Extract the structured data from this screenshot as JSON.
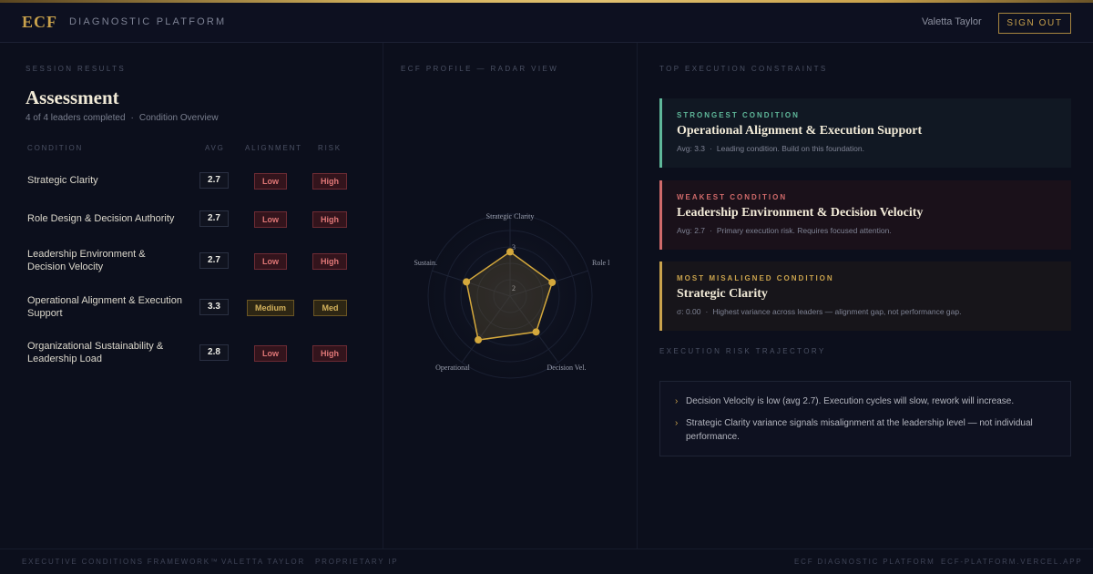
{
  "header": {
    "brand": "ECF",
    "platform": "DIAGNOSTIC PLATFORM",
    "user": "Valetta Taylor",
    "sign_out": "SIGN OUT"
  },
  "left": {
    "eyebrow": "SESSION RESULTS",
    "title": "Assessment",
    "completed": "4 of 4 leaders completed",
    "overview": "Condition Overview",
    "columns": {
      "condition": "CONDITION",
      "avg": "AVG",
      "alignment": "ALIGNMENT",
      "risk": "RISK"
    },
    "rows": [
      {
        "name": "Strategic Clarity",
        "avg": "2.7",
        "alignment": "Low",
        "risk": "High"
      },
      {
        "name": "Role Design & Decision Authority",
        "avg": "2.7",
        "alignment": "Low",
        "risk": "High"
      },
      {
        "name": "Leadership Environment & Decision Velocity",
        "avg": "2.7",
        "alignment": "Low",
        "risk": "High"
      },
      {
        "name": "Operational Alignment & Execution Support",
        "avg": "3.3",
        "alignment": "Medium",
        "risk": "Med"
      },
      {
        "name": "Organizational Sustainability & Leadership Load",
        "avg": "2.8",
        "alignment": "Low",
        "risk": "High"
      }
    ]
  },
  "radar": {
    "eyebrow": "ECF PROFILE — RADAR VIEW",
    "axes": [
      "Strategic Clarity",
      "Role l",
      "Decision Vel.",
      "Operational",
      "Sustain."
    ],
    "values": [
      2.7,
      2.7,
      2.7,
      3.3,
      2.8
    ],
    "max": 5,
    "ring_labels": [
      "3",
      "2"
    ],
    "accent": "#d4a83c"
  },
  "right": {
    "eyebrow": "TOP EXECUTION CONSTRAINTS",
    "cards": [
      {
        "kind": "STRONGEST CONDITION",
        "title": "Operational Alignment & Execution Support",
        "avg": "Avg: 3.3",
        "note": "Leading condition. Build on this foundation.",
        "color": "#5fb89a"
      },
      {
        "kind": "WEAKEST CONDITION",
        "title": "Leadership Environment & Decision Velocity",
        "avg": "Avg: 2.7",
        "note": "Primary execution risk. Requires focused attention.",
        "color": "#d06a6a"
      },
      {
        "kind": "MOST MISALIGNED CONDITION",
        "title": "Strategic Clarity",
        "avg": "σ: 0.00",
        "note": "Highest variance across leaders — alignment gap, not performance gap.",
        "color": "#c9a24c"
      }
    ],
    "trajectory_eyebrow": "EXECUTION RISK TRAJECTORY",
    "trajectory": [
      "Decision Velocity is low (avg 2.7). Execution cycles will slow, rework will increase.",
      "Strategic Clarity variance signals misalignment at the leadership level — not individual performance."
    ]
  },
  "footer": {
    "left": [
      "EXECUTIVE CONDITIONS FRAMEWORK™",
      "VALETTA TAYLOR",
      "PROPRIETARY IP"
    ],
    "right": [
      "ECF DIAGNOSTIC PLATFORM",
      "ECF-PLATFORM.VERCEL.APP"
    ]
  }
}
